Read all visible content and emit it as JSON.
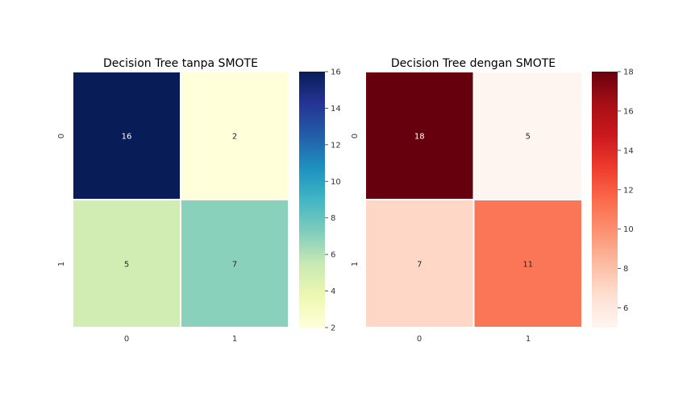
{
  "chart_data": [
    {
      "type": "heatmap",
      "title": "Decision Tree tanpa SMOTE",
      "x_ticks": [
        "0",
        "1"
      ],
      "y_ticks": [
        "0",
        "1"
      ],
      "values": [
        [
          16,
          2
        ],
        [
          5,
          7
        ]
      ],
      "colormap": "YlGnBu",
      "colorbar": {
        "min": 2,
        "max": 16,
        "ticks": [
          "2",
          "4",
          "6",
          "8",
          "10",
          "12",
          "14",
          "16"
        ]
      },
      "grid": false
    },
    {
      "type": "heatmap",
      "title": "Decision Tree dengan SMOTE",
      "x_ticks": [
        "0",
        "1"
      ],
      "y_ticks": [
        "0",
        "1"
      ],
      "values": [
        [
          18,
          5
        ],
        [
          7,
          11
        ]
      ],
      "colormap": "Reds",
      "colorbar": {
        "min": 5,
        "max": 18,
        "ticks": [
          "6",
          "8",
          "10",
          "12",
          "14",
          "16",
          "18"
        ]
      },
      "grid": false
    }
  ]
}
